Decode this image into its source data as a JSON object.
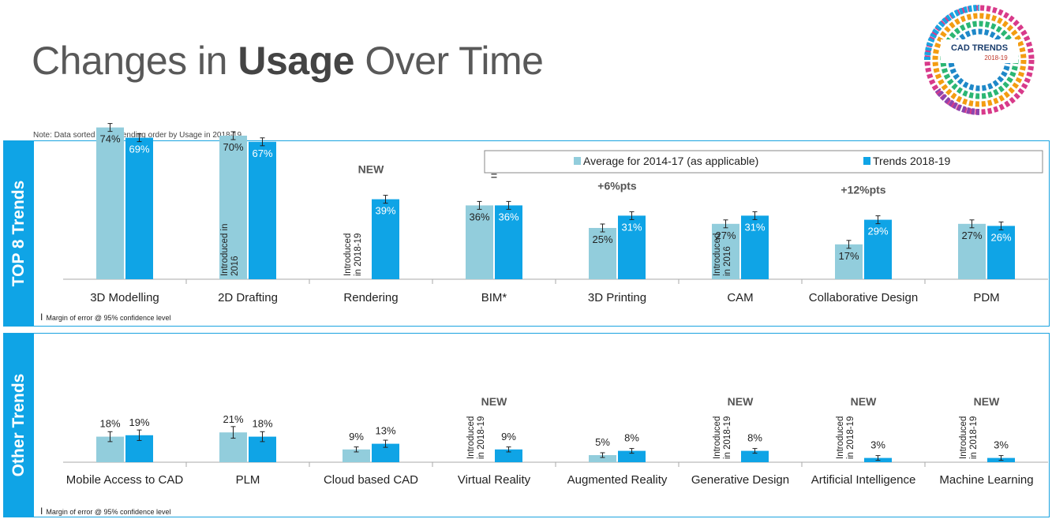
{
  "title": {
    "part1": "Changes in ",
    "bold": "Usage",
    "part2": " Over Time"
  },
  "note": "Note: Data sorted in descending order by Usage in 2018-19",
  "logo": {
    "text": "CAD TRENDS",
    "sub": "2018-19"
  },
  "colors": {
    "avg": "#92cddc",
    "trend": "#0fa4e6",
    "accent": "#1aa3e0"
  },
  "top_label": "TOP 8 Trends",
  "other_label": "Other Trends",
  "margin_note": "Margin of error @ 95% confidence level",
  "legend": {
    "avg": "Average for 2014-17 (as applicable)",
    "trend": "Trends 2018-19"
  },
  "chart_data": [
    {
      "type": "bar",
      "categories": [
        "3D Modelling",
        "2D Drafting",
        "Rendering",
        "BIM*",
        "3D Printing",
        "CAM",
        "Collaborative Design",
        "PDM"
      ],
      "series": [
        {
          "name": "Average for 2014-17 (as applicable)",
          "values": [
            74,
            70,
            null,
            36,
            25,
            27,
            17,
            27
          ]
        },
        {
          "name": "Trends 2018-19",
          "values": [
            69,
            67,
            39,
            36,
            31,
            31,
            29,
            26
          ]
        }
      ],
      "labels": {
        "avg": [
          "74%",
          "70%",
          "",
          "36%",
          "25%",
          "27%",
          "17%",
          "27%"
        ],
        "trend": [
          "69%",
          "67%",
          "39%",
          "36%",
          "31%",
          "31%",
          "29%",
          "26%"
        ]
      },
      "introduced": [
        "",
        "Introduced in|2016",
        "Introduced|in 2018-19",
        "",
        "",
        "Introduced|in 2016",
        "",
        ""
      ],
      "annotations": [
        "",
        "",
        "NEW",
        "=",
        "+6%pts",
        "",
        "+12%pts",
        ""
      ],
      "ylim": [
        0,
        80
      ]
    },
    {
      "type": "bar",
      "categories": [
        "Mobile Access to CAD",
        "PLM",
        "Cloud based CAD",
        "Virtual Reality",
        "Augmented Reality",
        "Generative Design",
        "Artificial Intelligence",
        "Machine Learning"
      ],
      "series": [
        {
          "name": "Average for 2014-17 (as applicable)",
          "values": [
            18,
            21,
            9,
            null,
            5,
            null,
            null,
            null
          ]
        },
        {
          "name": "Trends 2018-19",
          "values": [
            19,
            18,
            13,
            9,
            8,
            8,
            3,
            3
          ]
        }
      ],
      "labels": {
        "avg": [
          "18%",
          "21%",
          "9%",
          "",
          "5%",
          "",
          "",
          ""
        ],
        "trend": [
          "19%",
          "18%",
          "13%",
          "9%",
          "8%",
          "8%",
          "3%",
          "3%"
        ]
      },
      "introduced": [
        "",
        "",
        "",
        "Introduced|in 2018-19",
        "",
        "Introduced|in 2018-19",
        "Introduced|in 2018-19",
        "Introduced|in 2018-19"
      ],
      "annotations": [
        "",
        "",
        "",
        "NEW",
        "",
        "NEW",
        "NEW",
        "NEW"
      ],
      "ylim": [
        0,
        80
      ]
    }
  ]
}
